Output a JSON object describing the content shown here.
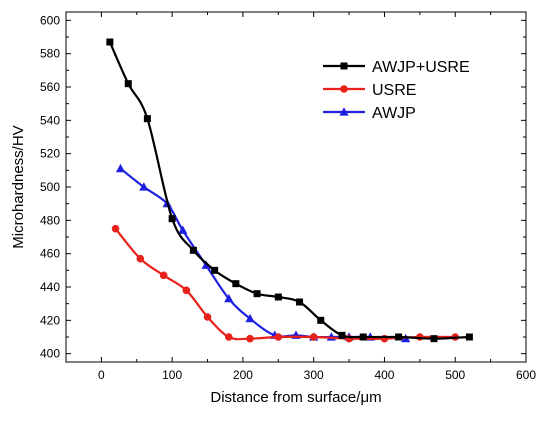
{
  "chart_data": {
    "type": "line",
    "xlabel": "Distance from surface/μm",
    "ylabel": "Microhardness/HV",
    "xlim": [
      -50,
      600
    ],
    "ylim": [
      395,
      605
    ],
    "xticks": [
      0,
      100,
      200,
      300,
      400,
      500,
      600
    ],
    "yticks": [
      400,
      420,
      440,
      460,
      480,
      500,
      520,
      540,
      560,
      580,
      600
    ],
    "grid": false,
    "legend_position": "top-right",
    "series": [
      {
        "name": "AWJP+USRE",
        "color": "#000000",
        "marker": "square",
        "x": [
          12,
          38,
          65,
          100,
          130,
          160,
          190,
          220,
          250,
          280,
          310,
          340,
          370,
          420,
          470,
          520
        ],
        "y": [
          587,
          562,
          541,
          481,
          462,
          450,
          442,
          436,
          434,
          431,
          420,
          411,
          410,
          410,
          409,
          410
        ]
      },
      {
        "name": "USRE",
        "color": "#e8211b",
        "marker": "circle",
        "x": [
          20,
          55,
          88,
          120,
          150,
          180,
          210,
          250,
          300,
          350,
          400,
          450,
          500
        ],
        "y": [
          475,
          457,
          447,
          438,
          422,
          410,
          409,
          410,
          410,
          409,
          409,
          410,
          410
        ]
      },
      {
        "name": "AWJP",
        "color": "#1f1fe0",
        "marker": "triangle",
        "x": [
          27,
          60,
          93,
          115,
          148,
          180,
          210,
          245,
          275,
          300,
          325,
          350,
          380,
          430
        ],
        "y": [
          511,
          500,
          490,
          474,
          453,
          433,
          421,
          411,
          411,
          410,
          410,
          410,
          410,
          409
        ]
      }
    ]
  }
}
